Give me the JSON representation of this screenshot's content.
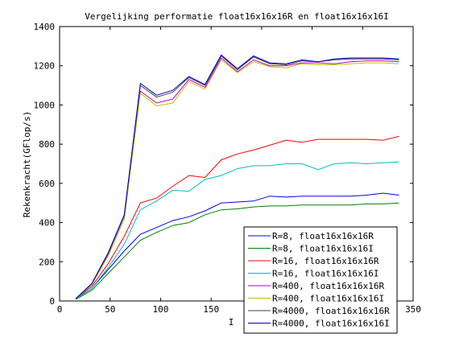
{
  "chart_data": {
    "type": "line",
    "title": "Vergelijking performatie float16x16x16R en float16x16x16I",
    "xlabel": "I",
    "ylabel": "Rekenkracht(GFlop/s)",
    "xlim": [
      0,
      350
    ],
    "ylim": [
      0,
      1400
    ],
    "xticks": [
      0,
      50,
      100,
      150,
      200,
      250,
      300,
      350
    ],
    "yticks": [
      0,
      200,
      400,
      600,
      800,
      1000,
      1200,
      1400
    ],
    "grid": false,
    "legend_position": "bottom-right",
    "x": [
      16,
      32,
      48,
      64,
      80,
      96,
      112,
      128,
      144,
      160,
      176,
      192,
      208,
      224,
      240,
      256,
      272,
      288,
      304,
      320,
      336
    ],
    "series": [
      {
        "name": "R=8, float16x16x16R",
        "color": "#0000ff",
        "values": [
          10,
          65,
          160,
          255,
          340,
          375,
          410,
          430,
          460,
          500,
          505,
          510,
          535,
          530,
          535,
          535,
          535,
          535,
          540,
          550,
          540
        ]
      },
      {
        "name": "R=8, float16x16x16I",
        "color": "#008000",
        "values": [
          8,
          55,
          140,
          225,
          310,
          350,
          385,
          400,
          440,
          465,
          470,
          480,
          485,
          485,
          490,
          490,
          490,
          490,
          495,
          495,
          500
        ]
      },
      {
        "name": "R=16, float16x16x16R",
        "color": "#ff0000",
        "values": [
          12,
          75,
          190,
          330,
          500,
          525,
          585,
          640,
          630,
          720,
          750,
          770,
          795,
          820,
          810,
          825,
          825,
          825,
          825,
          820,
          840
        ]
      },
      {
        "name": "R=16, float16x16x16I",
        "color": "#00bfbf",
        "values": [
          10,
          65,
          170,
          290,
          465,
          510,
          565,
          560,
          620,
          640,
          675,
          690,
          690,
          700,
          700,
          670,
          700,
          705,
          700,
          705,
          710
        ]
      },
      {
        "name": "R=400, float16x16x16R",
        "color": "#bf00bf",
        "values": [
          12,
          85,
          230,
          420,
          1070,
          1010,
          1030,
          1130,
          1090,
          1240,
          1170,
          1230,
          1200,
          1200,
          1215,
          1215,
          1210,
          1220,
          1225,
          1225,
          1220
        ]
      },
      {
        "name": "R=400, float16x16x16I",
        "color": "#bfbf00",
        "values": [
          12,
          85,
          230,
          420,
          1060,
          995,
          1010,
          1120,
          1080,
          1230,
          1165,
          1220,
          1195,
          1190,
          1210,
          1205,
          1205,
          1210,
          1215,
          1215,
          1210
        ]
      },
      {
        "name": "R=4000, float16x16x16R",
        "color": "#404040",
        "values": [
          12,
          88,
          240,
          435,
          1100,
          1040,
          1065,
          1140,
          1100,
          1250,
          1180,
          1245,
          1210,
          1205,
          1225,
          1220,
          1230,
          1235,
          1235,
          1235,
          1230
        ]
      },
      {
        "name": "R=4000, float16x16x16I",
        "color": "#0000cc",
        "values": [
          12,
          90,
          245,
          440,
          1110,
          1050,
          1075,
          1145,
          1105,
          1255,
          1185,
          1250,
          1215,
          1210,
          1230,
          1220,
          1235,
          1240,
          1240,
          1240,
          1235
        ]
      }
    ]
  }
}
